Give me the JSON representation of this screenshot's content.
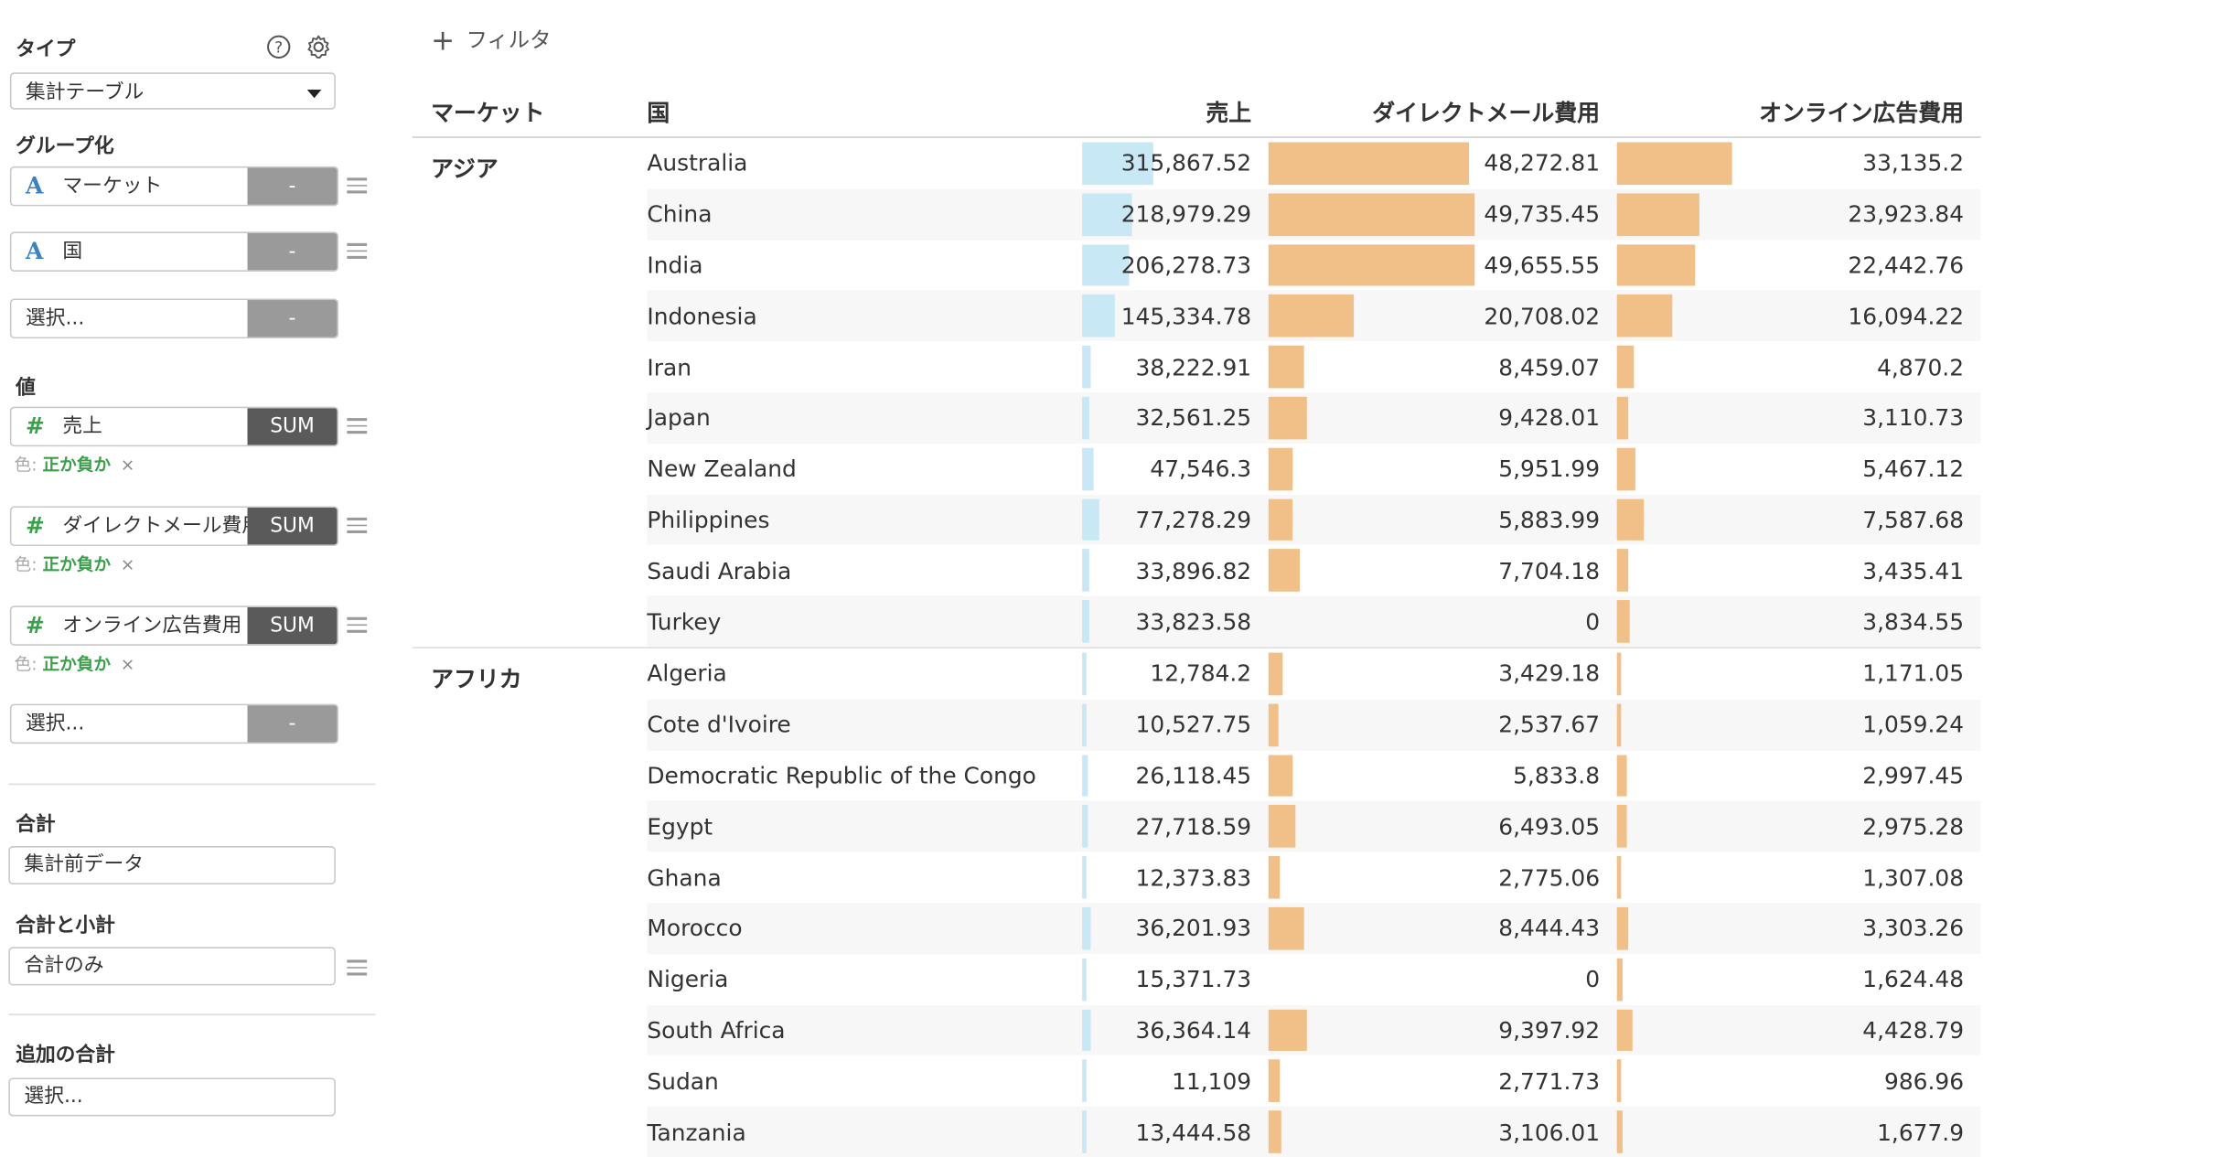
{
  "sidebar": {
    "type_label": "タイプ",
    "type_value": "集計テーブル",
    "group_label": "グループ化",
    "groups": [
      {
        "type": "A",
        "name": "マーケット",
        "btn": "-"
      },
      {
        "type": "A",
        "name": "国",
        "btn": "-"
      },
      {
        "type": "",
        "name": "選択...",
        "btn": "-"
      }
    ],
    "values_label": "値",
    "values": [
      {
        "type": "#",
        "name": "売上",
        "agg": "SUM",
        "color_prefix": "色:",
        "color_value": "正か負か",
        "color_remove": "×"
      },
      {
        "type": "#",
        "name": "ダイレクトメール費用",
        "agg": "SUM",
        "color_prefix": "色:",
        "color_value": "正か負か",
        "color_remove": "×"
      },
      {
        "type": "#",
        "name": "オンライン広告費用",
        "agg": "SUM",
        "color_prefix": "色:",
        "color_value": "正か負か",
        "color_remove": "×"
      }
    ],
    "values_select": {
      "name": "選択...",
      "btn": "-"
    },
    "total_label": "合計",
    "total_value": "集計前データ",
    "subtotal_label": "合計と小計",
    "subtotal_value": "合計のみ",
    "extra_label": "追加の合計",
    "extra_value": "選択..."
  },
  "filter": {
    "icon": "+",
    "label": "フィルタ"
  },
  "table": {
    "headers": {
      "market": "マーケット",
      "country": "国",
      "sales": "売上",
      "dm": "ダイレクトメール費用",
      "online": "オンライン広告費用"
    },
    "groups": [
      {
        "market": "アジア",
        "rows": [
          {
            "country": "Australia",
            "sales": "315,867.52",
            "dm": "48,272.81",
            "online": "33,135.2",
            "s": 315867.52,
            "d": 48272.81,
            "o": 33135.2
          },
          {
            "country": "China",
            "sales": "218,979.29",
            "dm": "49,735.45",
            "online": "23,923.84",
            "s": 218979.29,
            "d": 49735.45,
            "o": 23923.84
          },
          {
            "country": "India",
            "sales": "206,278.73",
            "dm": "49,655.55",
            "online": "22,442.76",
            "s": 206278.73,
            "d": 49655.55,
            "o": 22442.76
          },
          {
            "country": "Indonesia",
            "sales": "145,334.78",
            "dm": "20,708.02",
            "online": "16,094.22",
            "s": 145334.78,
            "d": 20708.02,
            "o": 16094.22
          },
          {
            "country": "Iran",
            "sales": "38,222.91",
            "dm": "8,459.07",
            "online": "4,870.2",
            "s": 38222.91,
            "d": 8459.07,
            "o": 4870.2
          },
          {
            "country": "Japan",
            "sales": "32,561.25",
            "dm": "9,428.01",
            "online": "3,110.73",
            "s": 32561.25,
            "d": 9428.01,
            "o": 3110.73
          },
          {
            "country": "New Zealand",
            "sales": "47,546.3",
            "dm": "5,951.99",
            "online": "5,467.12",
            "s": 47546.3,
            "d": 5951.99,
            "o": 5467.12
          },
          {
            "country": "Philippines",
            "sales": "77,278.29",
            "dm": "5,883.99",
            "online": "7,587.68",
            "s": 77278.29,
            "d": 5883.99,
            "o": 7587.68
          },
          {
            "country": "Saudi Arabia",
            "sales": "33,896.82",
            "dm": "7,704.18",
            "online": "3,435.41",
            "s": 33896.82,
            "d": 7704.18,
            "o": 3435.41
          },
          {
            "country": "Turkey",
            "sales": "33,823.58",
            "dm": "0",
            "online": "3,834.55",
            "s": 33823.58,
            "d": 0,
            "o": 3834.55
          }
        ]
      },
      {
        "market": "アフリカ",
        "rows": [
          {
            "country": "Algeria",
            "sales": "12,784.2",
            "dm": "3,429.18",
            "online": "1,171.05",
            "s": 12784.2,
            "d": 3429.18,
            "o": 1171.05
          },
          {
            "country": "Cote d'Ivoire",
            "sales": "10,527.75",
            "dm": "2,537.67",
            "online": "1,059.24",
            "s": 10527.75,
            "d": 2537.67,
            "o": 1059.24
          },
          {
            "country": "Democratic Republic of the Congo",
            "sales": "26,118.45",
            "dm": "5,833.8",
            "online": "2,997.45",
            "s": 26118.45,
            "d": 5833.8,
            "o": 2997.45
          },
          {
            "country": "Egypt",
            "sales": "27,718.59",
            "dm": "6,493.05",
            "online": "2,975.28",
            "s": 27718.59,
            "d": 6493.05,
            "o": 2975.28
          },
          {
            "country": "Ghana",
            "sales": "12,373.83",
            "dm": "2,775.06",
            "online": "1,307.08",
            "s": 12373.83,
            "d": 2775.06,
            "o": 1307.08
          },
          {
            "country": "Morocco",
            "sales": "36,201.93",
            "dm": "8,444.43",
            "online": "3,303.26",
            "s": 36201.93,
            "d": 8444.43,
            "o": 3303.26
          },
          {
            "country": "Nigeria",
            "sales": "15,371.73",
            "dm": "0",
            "online": "1,624.48",
            "s": 15371.73,
            "d": 0,
            "o": 1624.48
          },
          {
            "country": "South Africa",
            "sales": "36,364.14",
            "dm": "9,397.92",
            "online": "4,428.79",
            "s": 36364.14,
            "d": 9397.92,
            "o": 4428.79
          },
          {
            "country": "Sudan",
            "sales": "11,109",
            "dm": "2,771.73",
            "online": "986.96",
            "s": 11109,
            "d": 2771.73,
            "o": 986.96
          },
          {
            "country": "Tanzania",
            "sales": "13,444.58",
            "dm": "3,106.01",
            "online": "1,677.9",
            "s": 13444.58,
            "d": 3106.01,
            "o": 1677.9
          }
        ]
      }
    ],
    "scale_max": {
      "sales": 750000,
      "dm": 80000,
      "online": 100000
    },
    "colors": {
      "sales_bar": "#c8e8f5",
      "cost_bar": "#f0c088"
    }
  }
}
